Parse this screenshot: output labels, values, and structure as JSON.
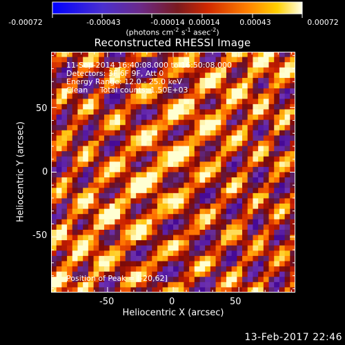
{
  "colorbar": {
    "ticks": [
      "-0.00072",
      "-0.00043",
      "-0.00014",
      "0.00014",
      "0.00043",
      "0.00072"
    ],
    "units": "(photons cm",
    "units_exp1": "-2",
    "units_mid": " s",
    "units_exp2": "-1",
    "units_mid2": " asec",
    "units_exp3": "-2",
    "units_end": ")",
    "colors": [
      "#0000ff",
      "#5a2dbe",
      "#7a2a78",
      "#8b1a10",
      "#e03000",
      "#ff8a00",
      "#ffd000",
      "#ffffe0"
    ]
  },
  "title": "Reconstructed RHESSI Image",
  "info": {
    "line1": "11-Sep-2014 16:40:08.000 to 16:50:08.000",
    "line2": "Detectors: 3F 6F 9F, Att 0",
    "line3": "Energy Range: 12.0 - 25.0 keV",
    "line4": "Clean     Total counts: 1.50E+03",
    "peak": "Position of Peak = [-20,62]"
  },
  "axes": {
    "xlabel": "Heliocentric X (arcsec)",
    "ylabel": "Heliocentric Y (arcsec)",
    "xticks": [
      "-50",
      "0",
      "50"
    ],
    "yticks": [
      "50",
      "0",
      "-50"
    ],
    "xrange": [
      -93,
      93
    ],
    "yrange": [
      -93,
      93
    ]
  },
  "footer": "13-Feb-2017 22:46"
}
